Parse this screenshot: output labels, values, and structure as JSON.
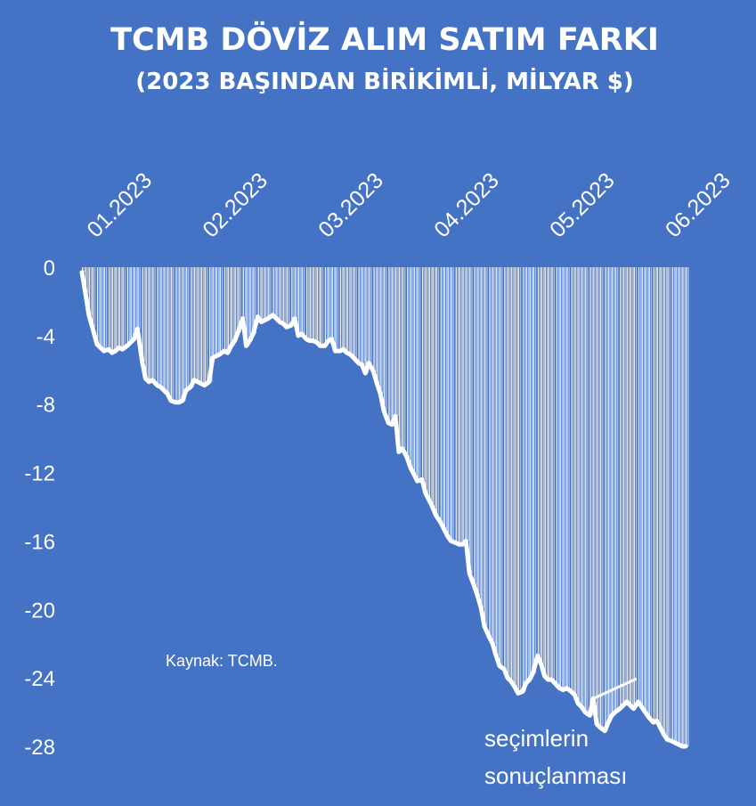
{
  "chart_data": {
    "type": "line",
    "title": "TCMB DÖVİZ ALIM SATIM FARKI",
    "subtitle": "(2023 BAŞINDAN BİRİKİMLİ, MİLYAR $)",
    "source": "Kaynak: TCMB.",
    "annotation": [
      "seçimlerin",
      "sonuçlanması"
    ],
    "x_tick_labels": [
      "01.2023",
      "02.2023",
      "03.2023",
      "04.2023",
      "05.2023",
      "06.2023"
    ],
    "x_axis_position": "top",
    "y_ticks": [
      0,
      -4,
      -8,
      -12,
      -16,
      -20,
      -24,
      -28
    ],
    "ylim": [
      -28,
      0
    ],
    "xlim": [
      0,
      5.25
    ],
    "grid": false,
    "legend": "none",
    "colors": {
      "background": "#4472c4",
      "line": "#ffffff",
      "text": "#ffffff"
    },
    "series": [
      {
        "x": [
          0.0,
          0.03,
          0.06,
          0.09,
          0.13,
          0.16,
          0.19,
          0.23,
          0.26,
          0.29,
          0.32,
          0.35,
          0.39,
          0.42,
          0.45,
          0.48,
          0.52,
          0.55,
          0.58,
          0.61,
          0.65,
          0.68,
          0.71,
          0.74,
          0.77,
          0.81,
          0.84,
          0.87,
          0.9,
          0.94,
          0.97,
          1.0,
          1.03,
          1.06,
          1.1,
          1.13,
          1.16,
          1.19,
          1.23,
          1.26,
          1.29,
          1.32,
          1.35,
          1.39,
          1.42,
          1.45,
          1.48,
          1.52,
          1.55,
          1.58,
          1.61,
          1.65,
          1.68,
          1.71,
          1.74,
          1.77,
          1.81,
          1.84,
          1.87,
          1.9,
          1.94,
          1.97,
          2.0,
          2.03,
          2.06,
          2.1,
          2.13,
          2.16,
          2.19,
          2.23,
          2.26,
          2.29,
          2.32,
          2.35,
          2.39,
          2.42,
          2.45,
          2.48,
          2.52,
          2.55,
          2.58,
          2.61,
          2.65,
          2.68,
          2.71,
          2.74,
          2.77,
          2.81,
          2.84,
          2.87,
          2.9,
          2.94,
          2.97,
          3.0,
          3.03,
          3.06,
          3.1,
          3.13,
          3.16,
          3.19,
          3.23,
          3.26,
          3.29,
          3.32,
          3.35,
          3.39,
          3.42,
          3.45,
          3.48,
          3.52,
          3.55,
          3.58,
          3.61,
          3.65,
          3.68,
          3.71,
          3.74,
          3.77,
          3.81,
          3.84,
          3.87,
          3.9,
          3.94,
          3.97,
          4.0,
          4.03,
          4.06,
          4.1,
          4.13,
          4.16,
          4.19,
          4.23,
          4.26,
          4.29,
          4.32,
          4.35,
          4.39,
          4.42,
          4.45,
          4.48,
          4.52,
          4.55,
          4.58,
          4.61,
          4.65,
          4.68,
          4.71,
          4.74,
          4.77,
          4.81,
          4.84,
          4.87,
          4.9,
          4.94,
          4.97,
          5.0,
          5.03,
          5.06,
          5.1,
          5.13,
          5.16,
          5.19,
          5.22
        ],
        "values": [
          -0.3,
          -1.5,
          -2.8,
          -3.5,
          -4.5,
          -4.7,
          -4.9,
          -4.8,
          -5.0,
          -4.9,
          -4.7,
          -4.8,
          -4.6,
          -4.4,
          -4.2,
          -3.6,
          -5.5,
          -6.5,
          -6.7,
          -6.6,
          -6.9,
          -7.0,
          -7.2,
          -7.4,
          -7.8,
          -7.9,
          -7.9,
          -7.8,
          -7.2,
          -7.0,
          -6.6,
          -6.7,
          -6.8,
          -6.9,
          -6.7,
          -5.3,
          -5.2,
          -5.1,
          -4.9,
          -5.0,
          -4.6,
          -4.3,
          -3.8,
          -3.0,
          -4.6,
          -4.3,
          -3.9,
          -2.9,
          -3.2,
          -3.1,
          -3.0,
          -2.8,
          -3.0,
          -3.2,
          -3.3,
          -3.5,
          -3.4,
          -3.0,
          -4.0,
          -3.9,
          -4.2,
          -4.3,
          -4.3,
          -4.4,
          -4.6,
          -4.6,
          -4.3,
          -4.2,
          -4.9,
          -4.9,
          -4.8,
          -5.0,
          -5.1,
          -5.3,
          -5.6,
          -5.7,
          -6.2,
          -5.6,
          -6.1,
          -6.8,
          -7.4,
          -8.4,
          -9.1,
          -9.2,
          -8.7,
          -10.8,
          -10.6,
          -11.1,
          -11.7,
          -12.1,
          -12.5,
          -12.4,
          -13.2,
          -13.6,
          -14.0,
          -14.5,
          -14.9,
          -15.3,
          -15.7,
          -16.0,
          -16.1,
          -16.2,
          -16.2,
          -16.0,
          -17.9,
          -18.6,
          -19.2,
          -19.9,
          -21.0,
          -21.6,
          -22.0,
          -22.7,
          -23.3,
          -23.5,
          -24.0,
          -24.2,
          -24.5,
          -24.9,
          -24.8,
          -24.3,
          -24.1,
          -23.7,
          -22.7,
          -23.2,
          -23.9,
          -24.1,
          -24.1,
          -24.4,
          -24.6,
          -24.7,
          -24.6,
          -24.8,
          -25.0,
          -25.5,
          -25.7,
          -26.0,
          -26.2,
          -25.2,
          -26.7,
          -26.9,
          -27.1,
          -26.6,
          -26.2,
          -26.0,
          -25.8,
          -25.6,
          -25.4,
          -25.6,
          -25.8,
          -25.4,
          -25.7,
          -26.0,
          -26.3,
          -26.6,
          -26.5,
          -26.9,
          -27.3,
          -27.6,
          -27.7,
          -27.8,
          -27.9,
          -28.0,
          -28.0
        ]
      }
    ]
  }
}
